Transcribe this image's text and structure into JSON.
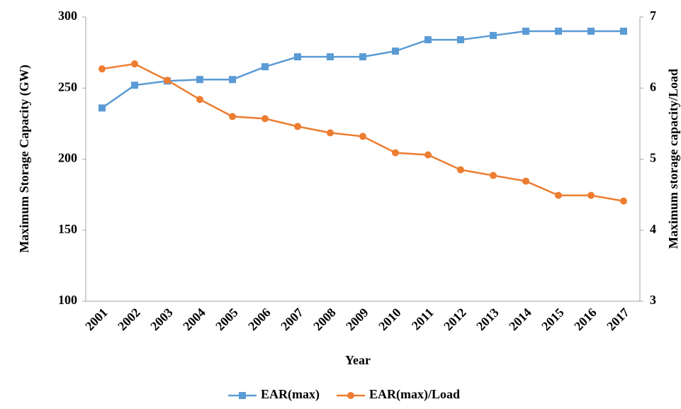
{
  "chart_data": {
    "type": "line",
    "x_label": "Year",
    "y_label": "Maximum Storage Capacity (GW)",
    "y2_label": "Maximum storage capacity/Load",
    "categories": [
      "2001",
      "2002",
      "2003",
      "2004",
      "2005",
      "2006",
      "2007",
      "2008",
      "2009",
      "2010",
      "2011",
      "2012",
      "2013",
      "2014",
      "2015",
      "2016",
      "2017"
    ],
    "series": [
      {
        "name": "EAR(max)",
        "color": "#5b9bd5",
        "marker": "square",
        "values": [
          236,
          252,
          255,
          256,
          256,
          265,
          272,
          272,
          272,
          276,
          284,
          284,
          287,
          290,
          290,
          290,
          290
        ]
      },
      {
        "name": "EAR(max)/Load",
        "color": "#ed7d31",
        "marker": "circle",
        "axis": "y2",
        "values": [
          6.27,
          6.34,
          6.11,
          5.84,
          5.6,
          5.57,
          5.46,
          5.37,
          5.32,
          5.09,
          5.06,
          4.85,
          4.77,
          4.69,
          4.49,
          4.49,
          4.41
        ]
      }
    ],
    "ylim": [
      100,
      300
    ],
    "yticks": [
      100,
      150,
      200,
      250,
      300
    ],
    "y2lim": [
      3,
      7
    ],
    "y2ticks": [
      3,
      4,
      5,
      6,
      7
    ],
    "legend": "bottom"
  }
}
